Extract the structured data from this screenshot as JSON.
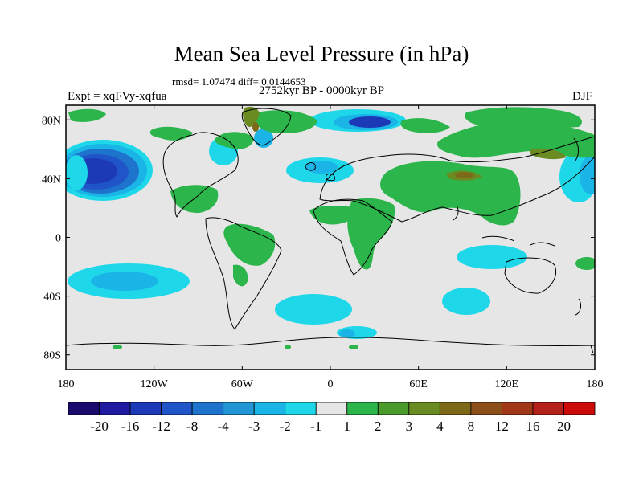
{
  "header": {
    "title": "Mean Sea Level Pressure (in hPa)",
    "stats": "rmsd= 1.07474 diff= 0.0144653",
    "experiment": "Expt = xqFVy-xqfua",
    "period": "2752kyr BP - 0000kyr BP",
    "season": "DJF"
  },
  "map": {
    "lat_labels": [
      "80N",
      "40N",
      "0",
      "40S",
      "80S"
    ],
    "lon_labels": [
      "180",
      "120W",
      "60W",
      "0",
      "60E",
      "120E",
      "180"
    ],
    "lat_values": [
      80,
      40,
      0,
      -40,
      -80
    ],
    "lon_values": [
      -180,
      -120,
      -60,
      0,
      60,
      120,
      180
    ],
    "lat_range": [
      -90,
      90
    ],
    "lon_range": [
      -180,
      180
    ],
    "background_color": "#e6e6e6"
  },
  "colorbar": {
    "colors": [
      "#1a0a6e",
      "#1f1aa0",
      "#1c3ab8",
      "#1f55c8",
      "#1e74cc",
      "#2196d6",
      "#1ab4e6",
      "#1ed8ea",
      "#e6e6e6",
      "#2bb54b",
      "#4a9a2c",
      "#6a8a22",
      "#7d6a18",
      "#8c4f1a",
      "#a03818",
      "#b4201a",
      "#cc0a0a"
    ],
    "tick_labels": [
      "-20",
      "-16",
      "-12",
      "-8",
      "-4",
      "-3",
      "-2",
      "-1",
      "1",
      "2",
      "3",
      "4",
      "8",
      "12",
      "16",
      "20"
    ]
  }
}
